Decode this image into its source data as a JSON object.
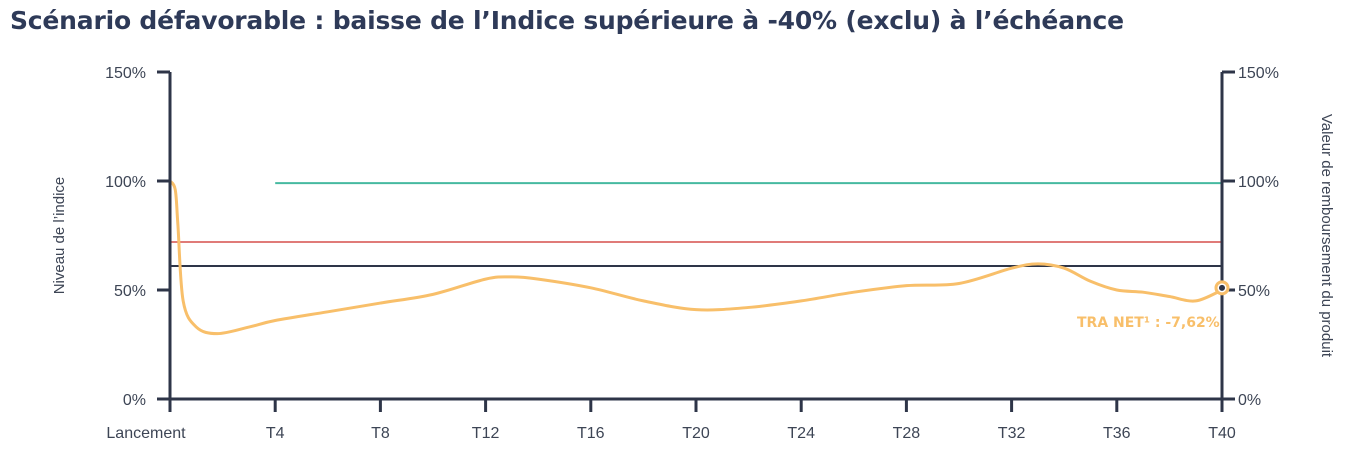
{
  "chart_data": {
    "type": "line",
    "title": "Scénario défavorable : baisse de l’Indice supérieure à -40% (exclu) à l’échéance",
    "ylabel_left": "Niveau de l’indice",
    "ylabel_right": "Valeur de remboursement du produit",
    "ylim": [
      0,
      150
    ],
    "y_ticks": [
      0,
      50,
      100,
      150
    ],
    "y_tick_labels": [
      "0%",
      "50%",
      "100%",
      "150%"
    ],
    "x_range": [
      0,
      40
    ],
    "x_ticks": [
      0,
      4,
      8,
      12,
      16,
      20,
      24,
      28,
      32,
      36,
      40
    ],
    "x_tick_labels": [
      "Lancement",
      "T4",
      "T8",
      "T12",
      "T16",
      "T20",
      "T24",
      "T28",
      "T32",
      "T36",
      "T40"
    ],
    "grid": false,
    "series": [
      {
        "name": "",
        "color": "#f8bf6a",
        "x": [
          0,
          0.2,
          0.3,
          0.5,
          1,
          1.8,
          3,
          4,
          6,
          8,
          10,
          12,
          13,
          14,
          16,
          18,
          20,
          22,
          24,
          26,
          28,
          30,
          32,
          33,
          34,
          35,
          36,
          37,
          38,
          39,
          40
        ],
        "y": [
          100,
          96,
          80,
          45,
          33,
          30,
          33,
          36,
          40,
          44,
          48,
          55,
          56,
          55,
          51,
          45,
          41,
          42,
          45,
          49,
          52,
          53,
          60,
          62,
          60,
          54,
          50,
          49,
          47,
          45,
          50
        ]
      }
    ],
    "reference_lines": [
      {
        "y": 99,
        "x_start": 4,
        "x_end": 40,
        "color": "#46b9a0"
      },
      {
        "y": 72,
        "x_start": 0,
        "x_end": 40,
        "color": "#e07b78"
      },
      {
        "y": 61,
        "x_start": 0,
        "x_end": 40,
        "color": "#2e3548"
      }
    ],
    "end_marker": {
      "x": 40,
      "y": 51
    },
    "annotations": [
      {
        "text": "TRA NET¹ : -7,62%",
        "x": 37.2,
        "y": 33
      }
    ]
  }
}
